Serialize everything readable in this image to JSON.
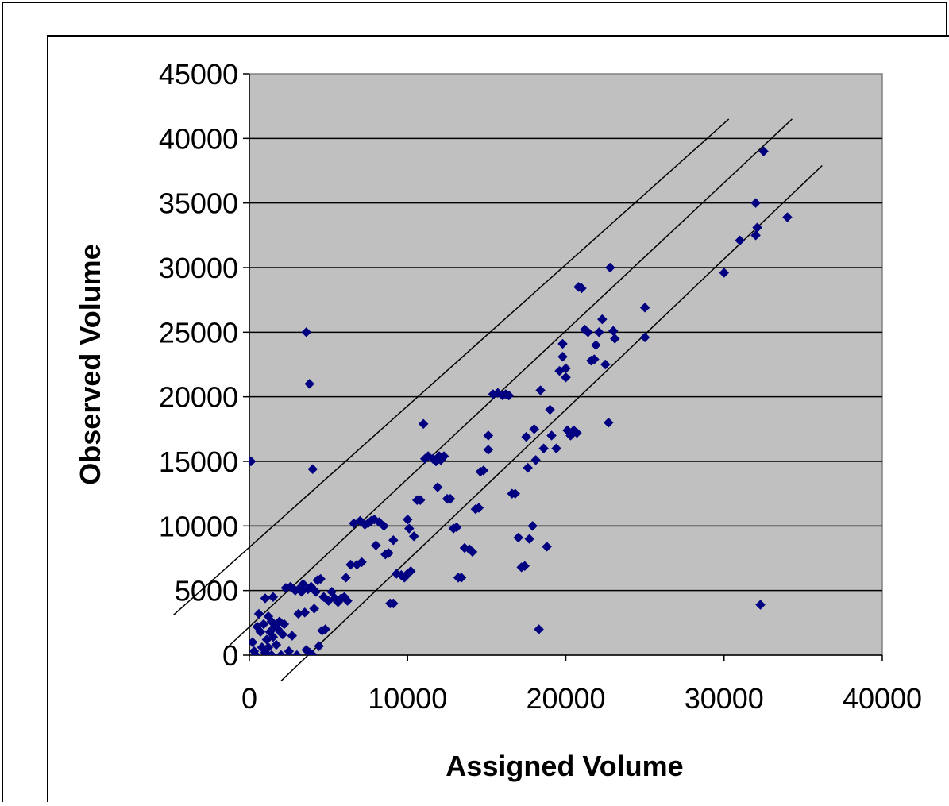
{
  "chart_data": {
    "type": "scatter",
    "title": "",
    "xlabel": "Assigned Volume",
    "ylabel": "Observed Volume",
    "xlim": [
      0,
      40000
    ],
    "ylim": [
      0,
      45000
    ],
    "x_ticks": [
      "0",
      "10000",
      "20000",
      "30000",
      "40000"
    ],
    "y_ticks": [
      "0",
      "5000",
      "10000",
      "15000",
      "20000",
      "25000",
      "30000",
      "35000",
      "40000",
      "45000"
    ],
    "grid": "horizontal",
    "legend": "none",
    "colors": {
      "plot_background": "#c0c0c0",
      "marker": "#000080",
      "line": "#000000",
      "gridline": "#000000"
    },
    "marker": "diamond",
    "reference_lines": [
      {
        "points": [
          [
            -4800,
            3100
          ],
          [
            30300,
            41500
          ]
        ]
      },
      {
        "points": [
          [
            -1300,
            700
          ],
          [
            34300,
            41500
          ]
        ]
      },
      {
        "points": [
          [
            2000,
            -2000
          ],
          [
            36200,
            37900
          ]
        ]
      }
    ],
    "points": [
      [
        100,
        15000
      ],
      [
        3600,
        25000
      ],
      [
        3800,
        21000
      ],
      [
        4000,
        14400
      ],
      [
        200,
        1000
      ],
      [
        300,
        300
      ],
      [
        400,
        0
      ],
      [
        500,
        2200
      ],
      [
        600,
        3200
      ],
      [
        700,
        1800
      ],
      [
        800,
        600
      ],
      [
        900,
        2400
      ],
      [
        1000,
        4400
      ],
      [
        1000,
        200
      ],
      [
        1100,
        1200
      ],
      [
        1200,
        3000
      ],
      [
        1200,
        600
      ],
      [
        1300,
        1800
      ],
      [
        1400,
        2600
      ],
      [
        1400,
        0
      ],
      [
        1500,
        4500
      ],
      [
        1500,
        1400
      ],
      [
        1600,
        2200
      ],
      [
        1700,
        800
      ],
      [
        1800,
        2000
      ],
      [
        1900,
        2600
      ],
      [
        2000,
        0
      ],
      [
        2100,
        1600
      ],
      [
        2200,
        2400
      ],
      [
        2300,
        5200
      ],
      [
        2500,
        300
      ],
      [
        2600,
        5300
      ],
      [
        2700,
        1500
      ],
      [
        2900,
        5000
      ],
      [
        3000,
        0
      ],
      [
        3100,
        3200
      ],
      [
        3200,
        5200
      ],
      [
        3300,
        4900
      ],
      [
        3400,
        5500
      ],
      [
        3500,
        3300
      ],
      [
        3600,
        400
      ],
      [
        3700,
        5100
      ],
      [
        3800,
        200
      ],
      [
        3900,
        5300
      ],
      [
        4000,
        0
      ],
      [
        4100,
        3600
      ],
      [
        4200,
        4900
      ],
      [
        4300,
        5800
      ],
      [
        4400,
        700
      ],
      [
        4500,
        5900
      ],
      [
        4600,
        1900
      ],
      [
        4700,
        4500
      ],
      [
        4800,
        2000
      ],
      [
        5000,
        4200
      ],
      [
        5200,
        4900
      ],
      [
        5400,
        4400
      ],
      [
        5600,
        4100
      ],
      [
        5800,
        4400
      ],
      [
        6000,
        4500
      ],
      [
        6100,
        6000
      ],
      [
        6200,
        4200
      ],
      [
        6400,
        7000
      ],
      [
        6600,
        10200
      ],
      [
        6800,
        7000
      ],
      [
        7000,
        10400
      ],
      [
        7100,
        7200
      ],
      [
        7300,
        10100
      ],
      [
        7500,
        10200
      ],
      [
        7700,
        10400
      ],
      [
        7900,
        10500
      ],
      [
        8000,
        8500
      ],
      [
        8200,
        10300
      ],
      [
        8500,
        10000
      ],
      [
        8600,
        7800
      ],
      [
        8800,
        7900
      ],
      [
        8900,
        4000
      ],
      [
        9100,
        4000
      ],
      [
        9100,
        8900
      ],
      [
        9300,
        6300
      ],
      [
        9600,
        6200
      ],
      [
        9800,
        6000
      ],
      [
        10000,
        6300
      ],
      [
        10000,
        10500
      ],
      [
        10100,
        9800
      ],
      [
        10200,
        6500
      ],
      [
        10400,
        9200
      ],
      [
        10600,
        12000
      ],
      [
        10800,
        12000
      ],
      [
        11000,
        17900
      ],
      [
        11100,
        15200
      ],
      [
        11300,
        15400
      ],
      [
        11600,
        15200
      ],
      [
        11800,
        15000
      ],
      [
        11900,
        13000
      ],
      [
        12000,
        15400
      ],
      [
        12100,
        15100
      ],
      [
        12300,
        15400
      ],
      [
        12500,
        12100
      ],
      [
        12700,
        12100
      ],
      [
        12900,
        9800
      ],
      [
        13100,
        9900
      ],
      [
        13200,
        6000
      ],
      [
        13400,
        6000
      ],
      [
        13600,
        8300
      ],
      [
        13900,
        8200
      ],
      [
        14100,
        8000
      ],
      [
        14300,
        11300
      ],
      [
        14500,
        11400
      ],
      [
        14600,
        14200
      ],
      [
        14800,
        14300
      ],
      [
        15100,
        17000
      ],
      [
        15100,
        15900
      ],
      [
        15400,
        20200
      ],
      [
        15700,
        20300
      ],
      [
        16000,
        20100
      ],
      [
        16200,
        20200
      ],
      [
        16400,
        20100
      ],
      [
        16600,
        12500
      ],
      [
        16800,
        12500
      ],
      [
        17000,
        9100
      ],
      [
        17200,
        6800
      ],
      [
        17400,
        6900
      ],
      [
        17500,
        16900
      ],
      [
        17600,
        14500
      ],
      [
        17700,
        9000
      ],
      [
        17900,
        10000
      ],
      [
        18000,
        17500
      ],
      [
        18100,
        15100
      ],
      [
        18300,
        2000
      ],
      [
        18400,
        20500
      ],
      [
        18600,
        16000
      ],
      [
        18800,
        8400
      ],
      [
        19000,
        19000
      ],
      [
        19100,
        17000
      ],
      [
        19400,
        16000
      ],
      [
        19600,
        22000
      ],
      [
        19800,
        24100
      ],
      [
        19800,
        23100
      ],
      [
        20000,
        21500
      ],
      [
        20000,
        22200
      ],
      [
        20100,
        17400
      ],
      [
        20300,
        17000
      ],
      [
        20500,
        17400
      ],
      [
        20700,
        17200
      ],
      [
        20800,
        28500
      ],
      [
        21000,
        28400
      ],
      [
        21200,
        25200
      ],
      [
        21400,
        25000
      ],
      [
        21600,
        22800
      ],
      [
        21800,
        22900
      ],
      [
        21900,
        24000
      ],
      [
        22100,
        25000
      ],
      [
        22300,
        26000
      ],
      [
        22500,
        22500
      ],
      [
        22700,
        18000
      ],
      [
        22800,
        30000
      ],
      [
        23000,
        25100
      ],
      [
        23100,
        24500
      ],
      [
        25000,
        26900
      ],
      [
        25000,
        24600
      ],
      [
        30000,
        29600
      ],
      [
        31000,
        32100
      ],
      [
        32000,
        35000
      ],
      [
        32000,
        32500
      ],
      [
        32100,
        33100
      ],
      [
        32300,
        3900
      ],
      [
        32500,
        39000
      ],
      [
        34000,
        33900
      ]
    ]
  }
}
